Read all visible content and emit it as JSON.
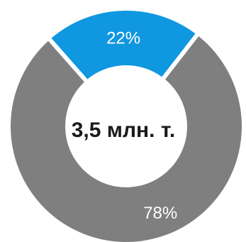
{
  "chart_data": {
    "type": "pie",
    "variant": "donut",
    "center_label": "3,5 млн. т.",
    "slices": [
      {
        "value": 22,
        "label": "22%",
        "color": "#0f97e0"
      },
      {
        "value": 78,
        "label": "78%",
        "color": "#7f7f7f"
      }
    ],
    "legend": false
  }
}
